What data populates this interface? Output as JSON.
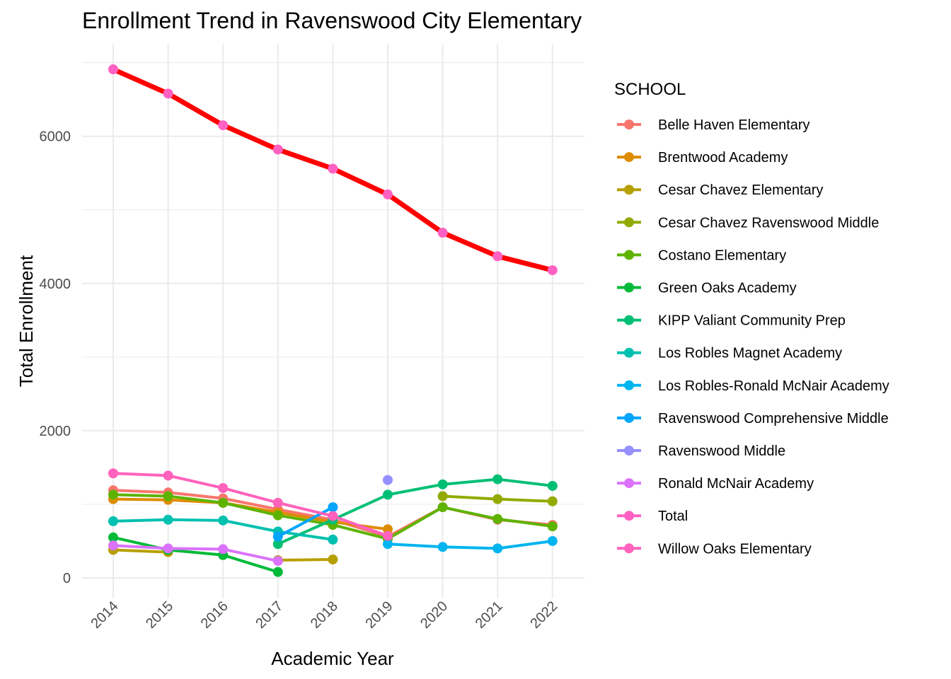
{
  "chart_data": {
    "type": "line",
    "title": "Enrollment Trend in Ravenswood City Elementary",
    "xlabel": "Academic Year",
    "ylabel": "Total Enrollment",
    "legend_title": "SCHOOL",
    "legend_position": "right",
    "grid": true,
    "ylim": [
      -350,
      7200
    ],
    "y_ticks": [
      0,
      2000,
      4000,
      6000
    ],
    "x": [
      "2014",
      "2015",
      "2016",
      "2017",
      "2018",
      "2019",
      "2020",
      "2021",
      "2022"
    ],
    "series": [
      {
        "name": "Belle Haven Elementary",
        "color": "#F8766D",
        "values": [
          1190,
          1160,
          1080,
          930,
          790,
          560,
          960,
          790,
          720
        ]
      },
      {
        "name": "Brentwood Academy",
        "color": "#DE8C00",
        "values": [
          1070,
          1060,
          1020,
          890,
          760,
          660,
          null,
          null,
          null
        ]
      },
      {
        "name": "Cesar Chavez Elementary",
        "color": "#B79F00",
        "values": [
          380,
          350,
          null,
          240,
          250,
          null,
          null,
          null,
          null
        ]
      },
      {
        "name": "Cesar Chavez Ravenswood Middle",
        "color": "#93AA00",
        "values": [
          null,
          null,
          null,
          null,
          null,
          null,
          1110,
          1070,
          1040
        ]
      },
      {
        "name": "Costano Elementary",
        "color": "#5EB300",
        "values": [
          1130,
          1110,
          1020,
          850,
          720,
          530,
          960,
          800,
          700
        ]
      },
      {
        "name": "Green Oaks Academy",
        "color": "#00BA38",
        "values": [
          550,
          380,
          310,
          80,
          null,
          null,
          null,
          null,
          null
        ]
      },
      {
        "name": "KIPP Valiant Community Prep",
        "color": "#00BF74",
        "values": [
          null,
          null,
          null,
          460,
          790,
          1130,
          1270,
          1340,
          1250
        ]
      },
      {
        "name": "Los Robles Magnet Academy",
        "color": "#00C0AF",
        "values": [
          770,
          790,
          780,
          630,
          520,
          null,
          null,
          null,
          null
        ]
      },
      {
        "name": "Los Robles-Ronald McNair Academy",
        "color": "#00B4EF",
        "values": [
          null,
          null,
          null,
          null,
          null,
          460,
          420,
          400,
          500
        ]
      },
      {
        "name": "Ravenswood Comprehensive Middle",
        "color": "#00A5FF",
        "values": [
          null,
          null,
          null,
          560,
          960,
          null,
          null,
          null,
          null
        ]
      },
      {
        "name": "Ravenswood Middle",
        "color": "#9590FF",
        "values": [
          null,
          null,
          null,
          null,
          null,
          1330,
          null,
          null,
          null
        ]
      },
      {
        "name": "Ronald McNair Academy",
        "color": "#DB72FB",
        "values": [
          440,
          400,
          390,
          230,
          null,
          null,
          null,
          null,
          null
        ]
      },
      {
        "name": "Total",
        "color": "#FF61C3",
        "line_color": "#FF0000",
        "values": [
          6910,
          6580,
          6150,
          5820,
          5560,
          5210,
          4690,
          4370,
          4180
        ]
      },
      {
        "name": "Willow Oaks Elementary",
        "color": "#FF62BC",
        "values": [
          1420,
          1390,
          1220,
          1020,
          840,
          570,
          null,
          null,
          null
        ]
      }
    ]
  }
}
